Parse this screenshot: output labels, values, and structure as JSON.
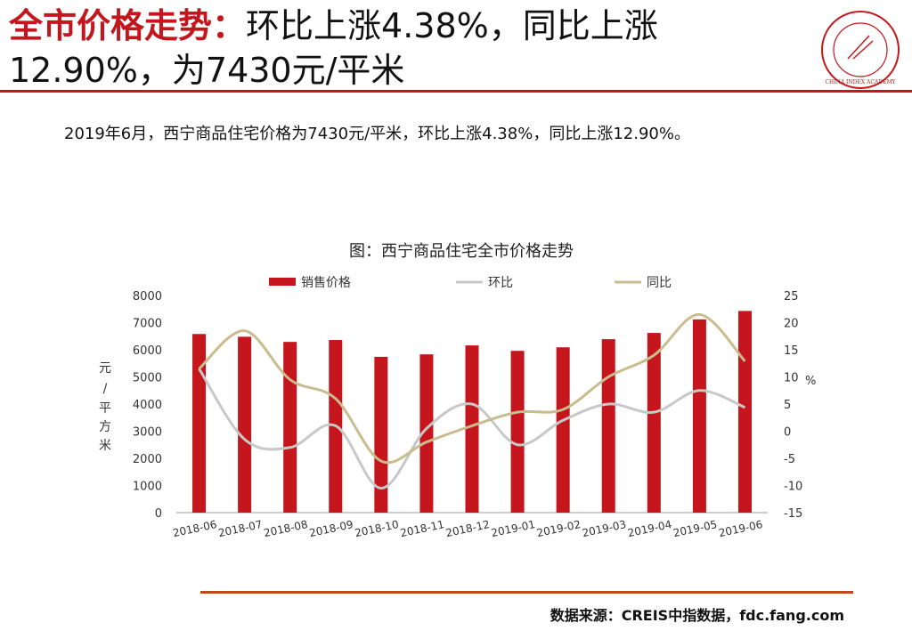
{
  "header": {
    "title_highlight": "全市价格走势：",
    "title_rest": "环比上涨4.38%，同比上涨12.90%，为7430元/平米"
  },
  "summary": "2019年6月，西宁商品住宅价格为7430元/平米，环比上涨4.38%，同比上涨12.90%。",
  "logo": {
    "text": "中国指数研究院 CHINA INDEX ACADEMY",
    "icon": "china-index-academy-seal"
  },
  "footer": {
    "source": "数据来源：CREIS中指数据，fdc.fang.com"
  },
  "colors": {
    "bar": "#c4161c",
    "mom": "#c8c8c8",
    "yoy": "#c9bc8e",
    "accent": "#c4161c"
  },
  "chart_data": {
    "type": "bar+line",
    "title": "图：西宁商品住宅全市价格走势",
    "categories": [
      "2018-06",
      "2018-07",
      "2018-08",
      "2018-09",
      "2018-10",
      "2018-11",
      "2018-12",
      "2019-01",
      "2019-02",
      "2019-03",
      "2019-04",
      "2019-05",
      "2019-06"
    ],
    "series": [
      {
        "name": "销售价格",
        "type": "bar",
        "axis": "left",
        "values": [
          6580,
          6480,
          6290,
          6360,
          5740,
          5830,
          6160,
          5960,
          6090,
          6390,
          6620,
          7120,
          7430
        ]
      },
      {
        "name": "环比",
        "type": "line",
        "axis": "right",
        "values": [
          11.5,
          -1.5,
          -3.0,
          1.0,
          -10.5,
          0.5,
          5.0,
          -2.5,
          2.0,
          5.0,
          3.5,
          7.5,
          4.38
        ]
      },
      {
        "name": "同比",
        "type": "line",
        "axis": "right",
        "values": [
          11.5,
          18.5,
          9.5,
          6.0,
          -5.5,
          -2.0,
          1.0,
          3.5,
          4.0,
          10.0,
          14.0,
          21.5,
          12.9
        ]
      }
    ],
    "y_left": {
      "label": "元/平方米",
      "ylim": [
        0,
        8000
      ],
      "ticks": [
        "0",
        "1000",
        "2000",
        "3000",
        "4000",
        "5000",
        "6000",
        "7000",
        "8000"
      ]
    },
    "y_right": {
      "label": "%",
      "ylim": [
        -15,
        25
      ],
      "ticks": [
        "-15",
        "-10",
        "-5",
        "0",
        "5",
        "10",
        "15",
        "20",
        "25"
      ]
    },
    "legend": "top",
    "grid": false
  }
}
